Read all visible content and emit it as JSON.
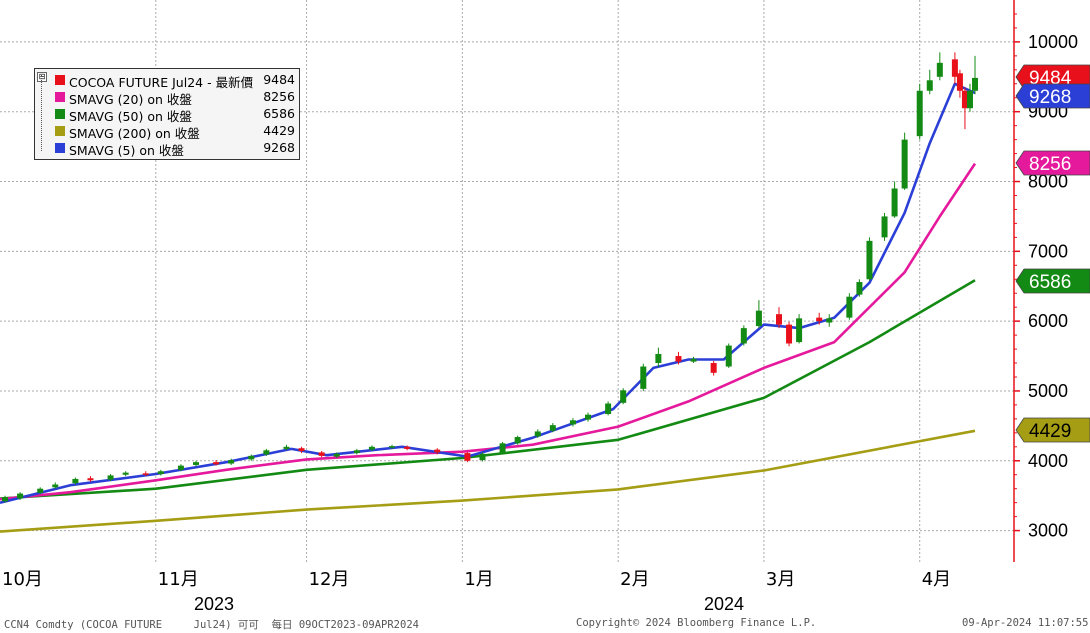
{
  "chart_data": {
    "type": "candlestick-line",
    "x_axis_month_labels": [
      "10月",
      "11月",
      "12月",
      "1月",
      "2月",
      "3月",
      "4月"
    ],
    "x_axis_year_labels": [
      "2023",
      "2024"
    ],
    "y_axis_ticks": [
      3000,
      4000,
      5000,
      6000,
      7000,
      8000,
      9000,
      10000
    ],
    "ylim": [
      2550,
      10600
    ],
    "date_range": [
      "2023-10-01",
      "2024-04-12"
    ],
    "candles": [
      {
        "d": "2023-10-02",
        "o": 3420,
        "c": 3480,
        "h": 3500,
        "l": 3400
      },
      {
        "d": "2023-10-05",
        "o": 3460,
        "c": 3530,
        "h": 3550,
        "l": 3440
      },
      {
        "d": "2023-10-09",
        "o": 3540,
        "c": 3600,
        "h": 3620,
        "l": 3520
      },
      {
        "d": "2023-10-12",
        "o": 3620,
        "c": 3660,
        "h": 3690,
        "l": 3600
      },
      {
        "d": "2023-10-16",
        "o": 3680,
        "c": 3740,
        "h": 3760,
        "l": 3660
      },
      {
        "d": "2023-10-19",
        "o": 3750,
        "c": 3720,
        "h": 3780,
        "l": 3700
      },
      {
        "d": "2023-10-23",
        "o": 3730,
        "c": 3790,
        "h": 3810,
        "l": 3710
      },
      {
        "d": "2023-10-26",
        "o": 3800,
        "c": 3830,
        "h": 3850,
        "l": 3780
      },
      {
        "d": "2023-10-30",
        "o": 3820,
        "c": 3800,
        "h": 3850,
        "l": 3780
      },
      {
        "d": "2023-11-02",
        "o": 3810,
        "c": 3850,
        "h": 3870,
        "l": 3790
      },
      {
        "d": "2023-11-06",
        "o": 3870,
        "c": 3930,
        "h": 3950,
        "l": 3850
      },
      {
        "d": "2023-11-09",
        "o": 3940,
        "c": 3980,
        "h": 4000,
        "l": 3920
      },
      {
        "d": "2023-11-13",
        "o": 3980,
        "c": 3950,
        "h": 4010,
        "l": 3930
      },
      {
        "d": "2023-11-16",
        "o": 3960,
        "c": 4010,
        "h": 4030,
        "l": 3940
      },
      {
        "d": "2023-11-20",
        "o": 4020,
        "c": 4070,
        "h": 4090,
        "l": 4000
      },
      {
        "d": "2023-11-23",
        "o": 4090,
        "c": 4150,
        "h": 4170,
        "l": 4070
      },
      {
        "d": "2023-11-27",
        "o": 4170,
        "c": 4200,
        "h": 4230,
        "l": 4150
      },
      {
        "d": "2023-11-30",
        "o": 4180,
        "c": 4140,
        "h": 4200,
        "l": 4110
      },
      {
        "d": "2023-12-04",
        "o": 4120,
        "c": 4070,
        "h": 4140,
        "l": 4050
      },
      {
        "d": "2023-12-07",
        "o": 4060,
        "c": 4100,
        "h": 4120,
        "l": 4040
      },
      {
        "d": "2023-12-11",
        "o": 4110,
        "c": 4150,
        "h": 4170,
        "l": 4090
      },
      {
        "d": "2023-12-14",
        "o": 4160,
        "c": 4200,
        "h": 4220,
        "l": 4140
      },
      {
        "d": "2023-12-18",
        "o": 4200,
        "c": 4210,
        "h": 4230,
        "l": 4170
      },
      {
        "d": "2023-12-21",
        "o": 4200,
        "c": 4170,
        "h": 4220,
        "l": 4150
      },
      {
        "d": "2023-12-27",
        "o": 4160,
        "c": 4120,
        "h": 4180,
        "l": 4090
      },
      {
        "d": "2024-01-02",
        "o": 4110,
        "c": 4000,
        "h": 4130,
        "l": 3980
      },
      {
        "d": "2024-01-05",
        "o": 4010,
        "c": 4100,
        "h": 4120,
        "l": 3990
      },
      {
        "d": "2024-01-09",
        "o": 4110,
        "c": 4250,
        "h": 4270,
        "l": 4090
      },
      {
        "d": "2024-01-12",
        "o": 4250,
        "c": 4340,
        "h": 4360,
        "l": 4230
      },
      {
        "d": "2024-01-16",
        "o": 4350,
        "c": 4420,
        "h": 4450,
        "l": 4330
      },
      {
        "d": "2024-01-19",
        "o": 4430,
        "c": 4510,
        "h": 4540,
        "l": 4410
      },
      {
        "d": "2024-01-23",
        "o": 4520,
        "c": 4580,
        "h": 4610,
        "l": 4490
      },
      {
        "d": "2024-01-26",
        "o": 4590,
        "c": 4660,
        "h": 4690,
        "l": 4560
      },
      {
        "d": "2024-01-30",
        "o": 4670,
        "c": 4820,
        "h": 4850,
        "l": 4650
      },
      {
        "d": "2024-02-02",
        "o": 4830,
        "c": 5010,
        "h": 5040,
        "l": 4810
      },
      {
        "d": "2024-02-06",
        "o": 5030,
        "c": 5350,
        "h": 5390,
        "l": 5000
      },
      {
        "d": "2024-02-09",
        "o": 5400,
        "c": 5530,
        "h": 5620,
        "l": 5340
      },
      {
        "d": "2024-02-13",
        "o": 5500,
        "c": 5420,
        "h": 5560,
        "l": 5380
      },
      {
        "d": "2024-02-16",
        "o": 5420,
        "c": 5460,
        "h": 5490,
        "l": 5400
      },
      {
        "d": "2024-02-20",
        "o": 5400,
        "c": 5260,
        "h": 5430,
        "l": 5220
      },
      {
        "d": "2024-02-23",
        "o": 5350,
        "c": 5650,
        "h": 5680,
        "l": 5330
      },
      {
        "d": "2024-02-26",
        "o": 5680,
        "c": 5900,
        "h": 5940,
        "l": 5650
      },
      {
        "d": "2024-02-29",
        "o": 5930,
        "c": 6150,
        "h": 6300,
        "l": 5900
      },
      {
        "d": "2024-03-04",
        "o": 6100,
        "c": 5950,
        "h": 6200,
        "l": 5900
      },
      {
        "d": "2024-03-06",
        "o": 5950,
        "c": 5680,
        "h": 5990,
        "l": 5640
      },
      {
        "d": "2024-03-08",
        "o": 5700,
        "c": 6040,
        "h": 6100,
        "l": 5680
      },
      {
        "d": "2024-03-12",
        "o": 6050,
        "c": 6000,
        "h": 6120,
        "l": 5950
      },
      {
        "d": "2024-03-14",
        "o": 5980,
        "c": 6040,
        "h": 6100,
        "l": 5920
      },
      {
        "d": "2024-03-18",
        "o": 6050,
        "c": 6350,
        "h": 6400,
        "l": 6020
      },
      {
        "d": "2024-03-20",
        "o": 6380,
        "c": 6560,
        "h": 6600,
        "l": 6350
      },
      {
        "d": "2024-03-22",
        "o": 6600,
        "c": 7150,
        "h": 7200,
        "l": 6580
      },
      {
        "d": "2024-03-25",
        "o": 7200,
        "c": 7500,
        "h": 7550,
        "l": 7150
      },
      {
        "d": "2024-03-27",
        "o": 7500,
        "c": 7900,
        "h": 8000,
        "l": 7480
      },
      {
        "d": "2024-03-29",
        "o": 7900,
        "c": 8600,
        "h": 8700,
        "l": 7880
      },
      {
        "d": "2024-04-01",
        "o": 8650,
        "c": 9300,
        "h": 9400,
        "l": 8600
      },
      {
        "d": "2024-04-03",
        "o": 9300,
        "c": 9450,
        "h": 9600,
        "l": 9250
      },
      {
        "d": "2024-04-05",
        "o": 9500,
        "c": 9700,
        "h": 9850,
        "l": 9450
      },
      {
        "d": "2024-04-08",
        "o": 9750,
        "c": 9500,
        "h": 9850,
        "l": 9400
      },
      {
        "d": "2024-04-09",
        "o": 9550,
        "c": 9300,
        "h": 9600,
        "l": 9200
      },
      {
        "d": "2024-04-10",
        "o": 9300,
        "c": 9050,
        "h": 9350,
        "l": 8750
      },
      {
        "d": "2024-04-11",
        "o": 9050,
        "c": 9300,
        "h": 9400,
        "l": 9000
      },
      {
        "d": "2024-04-12",
        "o": 9300,
        "c": 9484,
        "h": 9800,
        "l": 9250
      }
    ],
    "series": [
      {
        "name": "SMAVG (5)  on 收盤",
        "color": "#2b3fd6",
        "values": [
          [
            "2023-10-01",
            3400
          ],
          [
            "2023-10-15",
            3650
          ],
          [
            "2023-11-01",
            3810
          ],
          [
            "2023-11-15",
            3980
          ],
          [
            "2023-11-28",
            4170
          ],
          [
            "2023-12-05",
            4080
          ],
          [
            "2023-12-20",
            4200
          ],
          [
            "2024-01-02",
            4060
          ],
          [
            "2024-01-15",
            4330
          ],
          [
            "2024-01-31",
            4740
          ],
          [
            "2024-02-08",
            5330
          ],
          [
            "2024-02-15",
            5450
          ],
          [
            "2024-02-22",
            5450
          ],
          [
            "2024-03-01",
            5950
          ],
          [
            "2024-03-08",
            5900
          ],
          [
            "2024-03-15",
            6050
          ],
          [
            "2024-03-22",
            6550
          ],
          [
            "2024-03-29",
            7550
          ],
          [
            "2024-04-03",
            8550
          ],
          [
            "2024-04-08",
            9400
          ],
          [
            "2024-04-12",
            9268
          ]
        ]
      },
      {
        "name": "SMAVG (20)  on 收盤",
        "color": "#e5199c",
        "values": [
          [
            "2023-10-01",
            3450
          ],
          [
            "2023-10-15",
            3550
          ],
          [
            "2023-11-01",
            3720
          ],
          [
            "2023-11-15",
            3870
          ],
          [
            "2023-12-01",
            4020
          ],
          [
            "2023-12-15",
            4080
          ],
          [
            "2024-01-01",
            4130
          ],
          [
            "2024-01-15",
            4230
          ],
          [
            "2024-02-01",
            4490
          ],
          [
            "2024-02-15",
            4850
          ],
          [
            "2024-03-01",
            5330
          ],
          [
            "2024-03-15",
            5700
          ],
          [
            "2024-03-29",
            6700
          ],
          [
            "2024-04-05",
            7500
          ],
          [
            "2024-04-12",
            8256
          ]
        ]
      },
      {
        "name": "SMAVG (50)  on 收盤",
        "color": "#138a13",
        "values": [
          [
            "2023-10-01",
            3460
          ],
          [
            "2023-11-01",
            3600
          ],
          [
            "2023-12-01",
            3870
          ],
          [
            "2024-01-01",
            4040
          ],
          [
            "2024-02-01",
            4300
          ],
          [
            "2024-03-01",
            4900
          ],
          [
            "2024-03-22",
            5700
          ],
          [
            "2024-04-12",
            6586
          ]
        ]
      },
      {
        "name": "SMAVG (200)  on 收盤",
        "color": "#a59d14",
        "values": [
          [
            "2023-10-01",
            2985
          ],
          [
            "2023-11-01",
            3140
          ],
          [
            "2023-12-01",
            3300
          ],
          [
            "2024-01-01",
            3430
          ],
          [
            "2024-02-01",
            3590
          ],
          [
            "2024-03-01",
            3860
          ],
          [
            "2024-04-12",
            4429
          ]
        ]
      }
    ],
    "price_tags": [
      {
        "label": "9484",
        "value": 9484,
        "bg": "#e8101a",
        "fg": "#ffffff"
      },
      {
        "label": "9268",
        "value": 9268,
        "bg": "#2b3fd6",
        "fg": "#ffffff"
      },
      {
        "label": "8256",
        "value": 8256,
        "bg": "#e5199c",
        "fg": "#ffffff"
      },
      {
        "label": "6586",
        "value": 6586,
        "bg": "#138a13",
        "fg": "#ffffff"
      },
      {
        "label": "4429",
        "value": 4429,
        "bg": "#a59d14",
        "fg": "#000000"
      }
    ]
  },
  "legend": [
    {
      "name": "COCOA FUTURE Jul24 - 最新價",
      "value": "9484",
      "color": "#e8101a"
    },
    {
      "name": "SMAVG (20)  on 收盤",
      "value": "8256",
      "color": "#e5199c"
    },
    {
      "name": "SMAVG (50)  on 收盤",
      "value": "6586",
      "color": "#138a13"
    },
    {
      "name": "SMAVG (200)  on 收盤",
      "value": "4429",
      "color": "#a59d14"
    },
    {
      "name": "SMAVG (5)  on 收盤",
      "value": "9268",
      "color": "#2b3fd6"
    }
  ],
  "legend_collapse_glyph": "⊟",
  "footer": {
    "left": "CCN4 Comdty (COCOA FUTURE     Jul24) 可可  每日 09OCT2023-09APR2024",
    "center": "Copyright© 2024 Bloomberg Finance L.P.",
    "right": "09-Apr-2024 11:07:55"
  },
  "colors": {
    "up": "#138a13",
    "down": "#e8101a",
    "axis": "#e8101a",
    "grid": "#aaaaaa"
  }
}
